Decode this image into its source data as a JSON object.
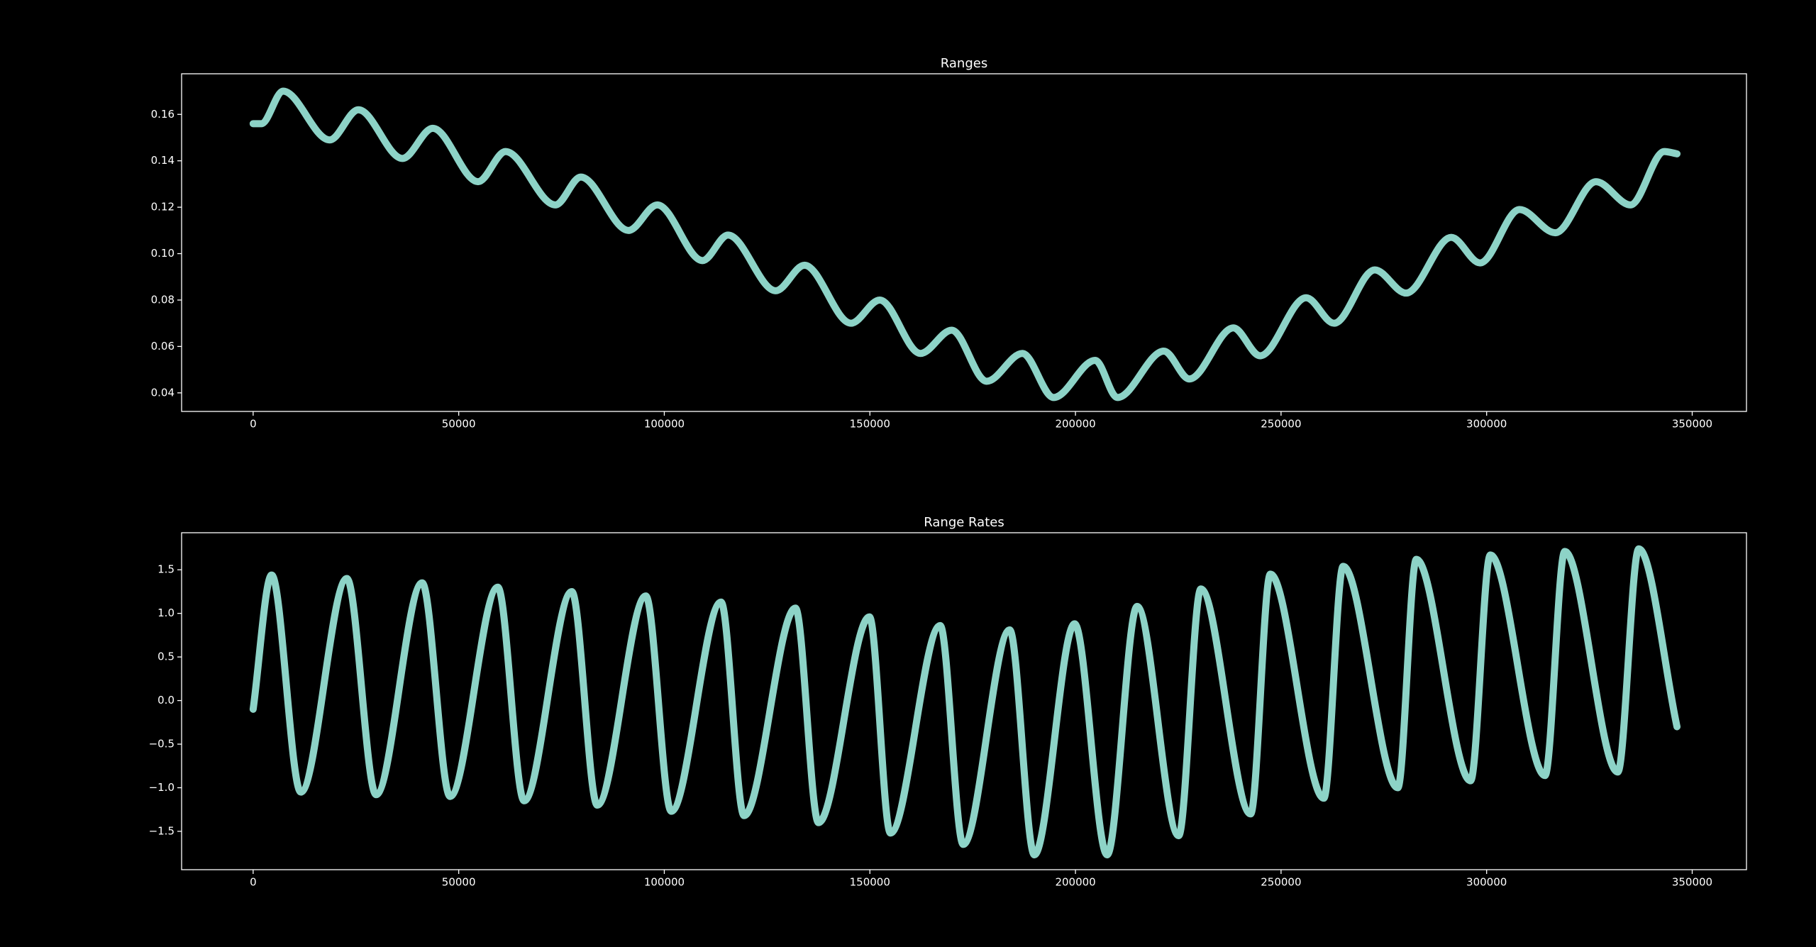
{
  "chart_data": [
    {
      "type": "line",
      "title": "Ranges",
      "color": "#8dd3c7",
      "x": [
        0,
        2000,
        7300,
        18600,
        25600,
        36300,
        43700,
        54700,
        61400,
        73500,
        79700,
        91300,
        98300,
        109300,
        115500,
        127100,
        134100,
        145400,
        152400,
        162300,
        169900,
        178400,
        187100,
        194700,
        204800,
        210200,
        221500,
        227700,
        238400,
        244900,
        256100,
        262900,
        272800,
        280400,
        291400,
        298400,
        308000,
        316700,
        326600,
        335000,
        343200,
        346300
      ],
      "values": [
        0.156,
        0.156,
        0.17,
        0.149,
        0.162,
        0.141,
        0.154,
        0.131,
        0.144,
        0.121,
        0.133,
        0.11,
        0.121,
        0.097,
        0.108,
        0.084,
        0.095,
        0.07,
        0.08,
        0.057,
        0.067,
        0.045,
        0.057,
        0.038,
        0.054,
        0.038,
        0.058,
        0.046,
        0.068,
        0.056,
        0.081,
        0.07,
        0.093,
        0.083,
        0.107,
        0.096,
        0.119,
        0.109,
        0.131,
        0.121,
        0.144,
        0.143
      ],
      "xlim": [
        -17400,
        363200
      ],
      "xticks": [
        0,
        50000,
        100000,
        150000,
        200000,
        250000,
        300000,
        350000
      ],
      "ylim": [
        0.032,
        0.1775
      ],
      "yticks": [
        {
          "value": 0.04,
          "label": "0.04"
        },
        {
          "value": 0.06,
          "label": "0.06"
        },
        {
          "value": 0.08,
          "label": "0.08"
        },
        {
          "value": 0.1,
          "label": "0.10"
        },
        {
          "value": 0.12,
          "label": "0.12"
        },
        {
          "value": 0.14,
          "label": "0.14"
        },
        {
          "value": 0.16,
          "label": "0.16"
        }
      ]
    },
    {
      "type": "line",
      "title": "Range Rates",
      "color": "#8dd3c7",
      "x": [
        0,
        4500,
        11600,
        22800,
        29900,
        41100,
        47900,
        59500,
        65900,
        77500,
        83700,
        95500,
        101700,
        113800,
        119400,
        131900,
        137500,
        149900,
        155000,
        167100,
        172700,
        184000,
        190000,
        199800,
        207700,
        215000,
        225100,
        230500,
        242600,
        247400,
        260400,
        265100,
        278400,
        282900,
        296100,
        300900,
        314200,
        319000,
        331900,
        337000,
        346300
      ],
      "values": [
        -0.1,
        1.44,
        -1.05,
        1.4,
        -1.08,
        1.35,
        -1.1,
        1.3,
        -1.15,
        1.25,
        -1.2,
        1.2,
        -1.27,
        1.13,
        -1.32,
        1.06,
        -1.4,
        0.96,
        -1.52,
        0.86,
        -1.65,
        0.81,
        -1.77,
        0.88,
        -1.77,
        1.08,
        -1.55,
        1.28,
        -1.3,
        1.45,
        -1.12,
        1.54,
        -1.0,
        1.62,
        -0.92,
        1.67,
        -0.86,
        1.71,
        -0.82,
        1.74,
        -0.3
      ],
      "xlim": [
        -17400,
        363200
      ],
      "xticks": [
        0,
        50000,
        100000,
        150000,
        200000,
        250000,
        300000,
        350000
      ],
      "ylim": [
        -1.94,
        1.925
      ],
      "yticks": [
        {
          "value": -1.5,
          "label": "−1.5"
        },
        {
          "value": -1,
          "label": "−1.0"
        },
        {
          "value": -0.5,
          "label": "−0.5"
        },
        {
          "value": 0,
          "label": "0.0"
        },
        {
          "value": 0.5,
          "label": "0.5"
        },
        {
          "value": 1,
          "label": "1.0"
        },
        {
          "value": 1.5,
          "label": "1.5"
        }
      ]
    }
  ]
}
